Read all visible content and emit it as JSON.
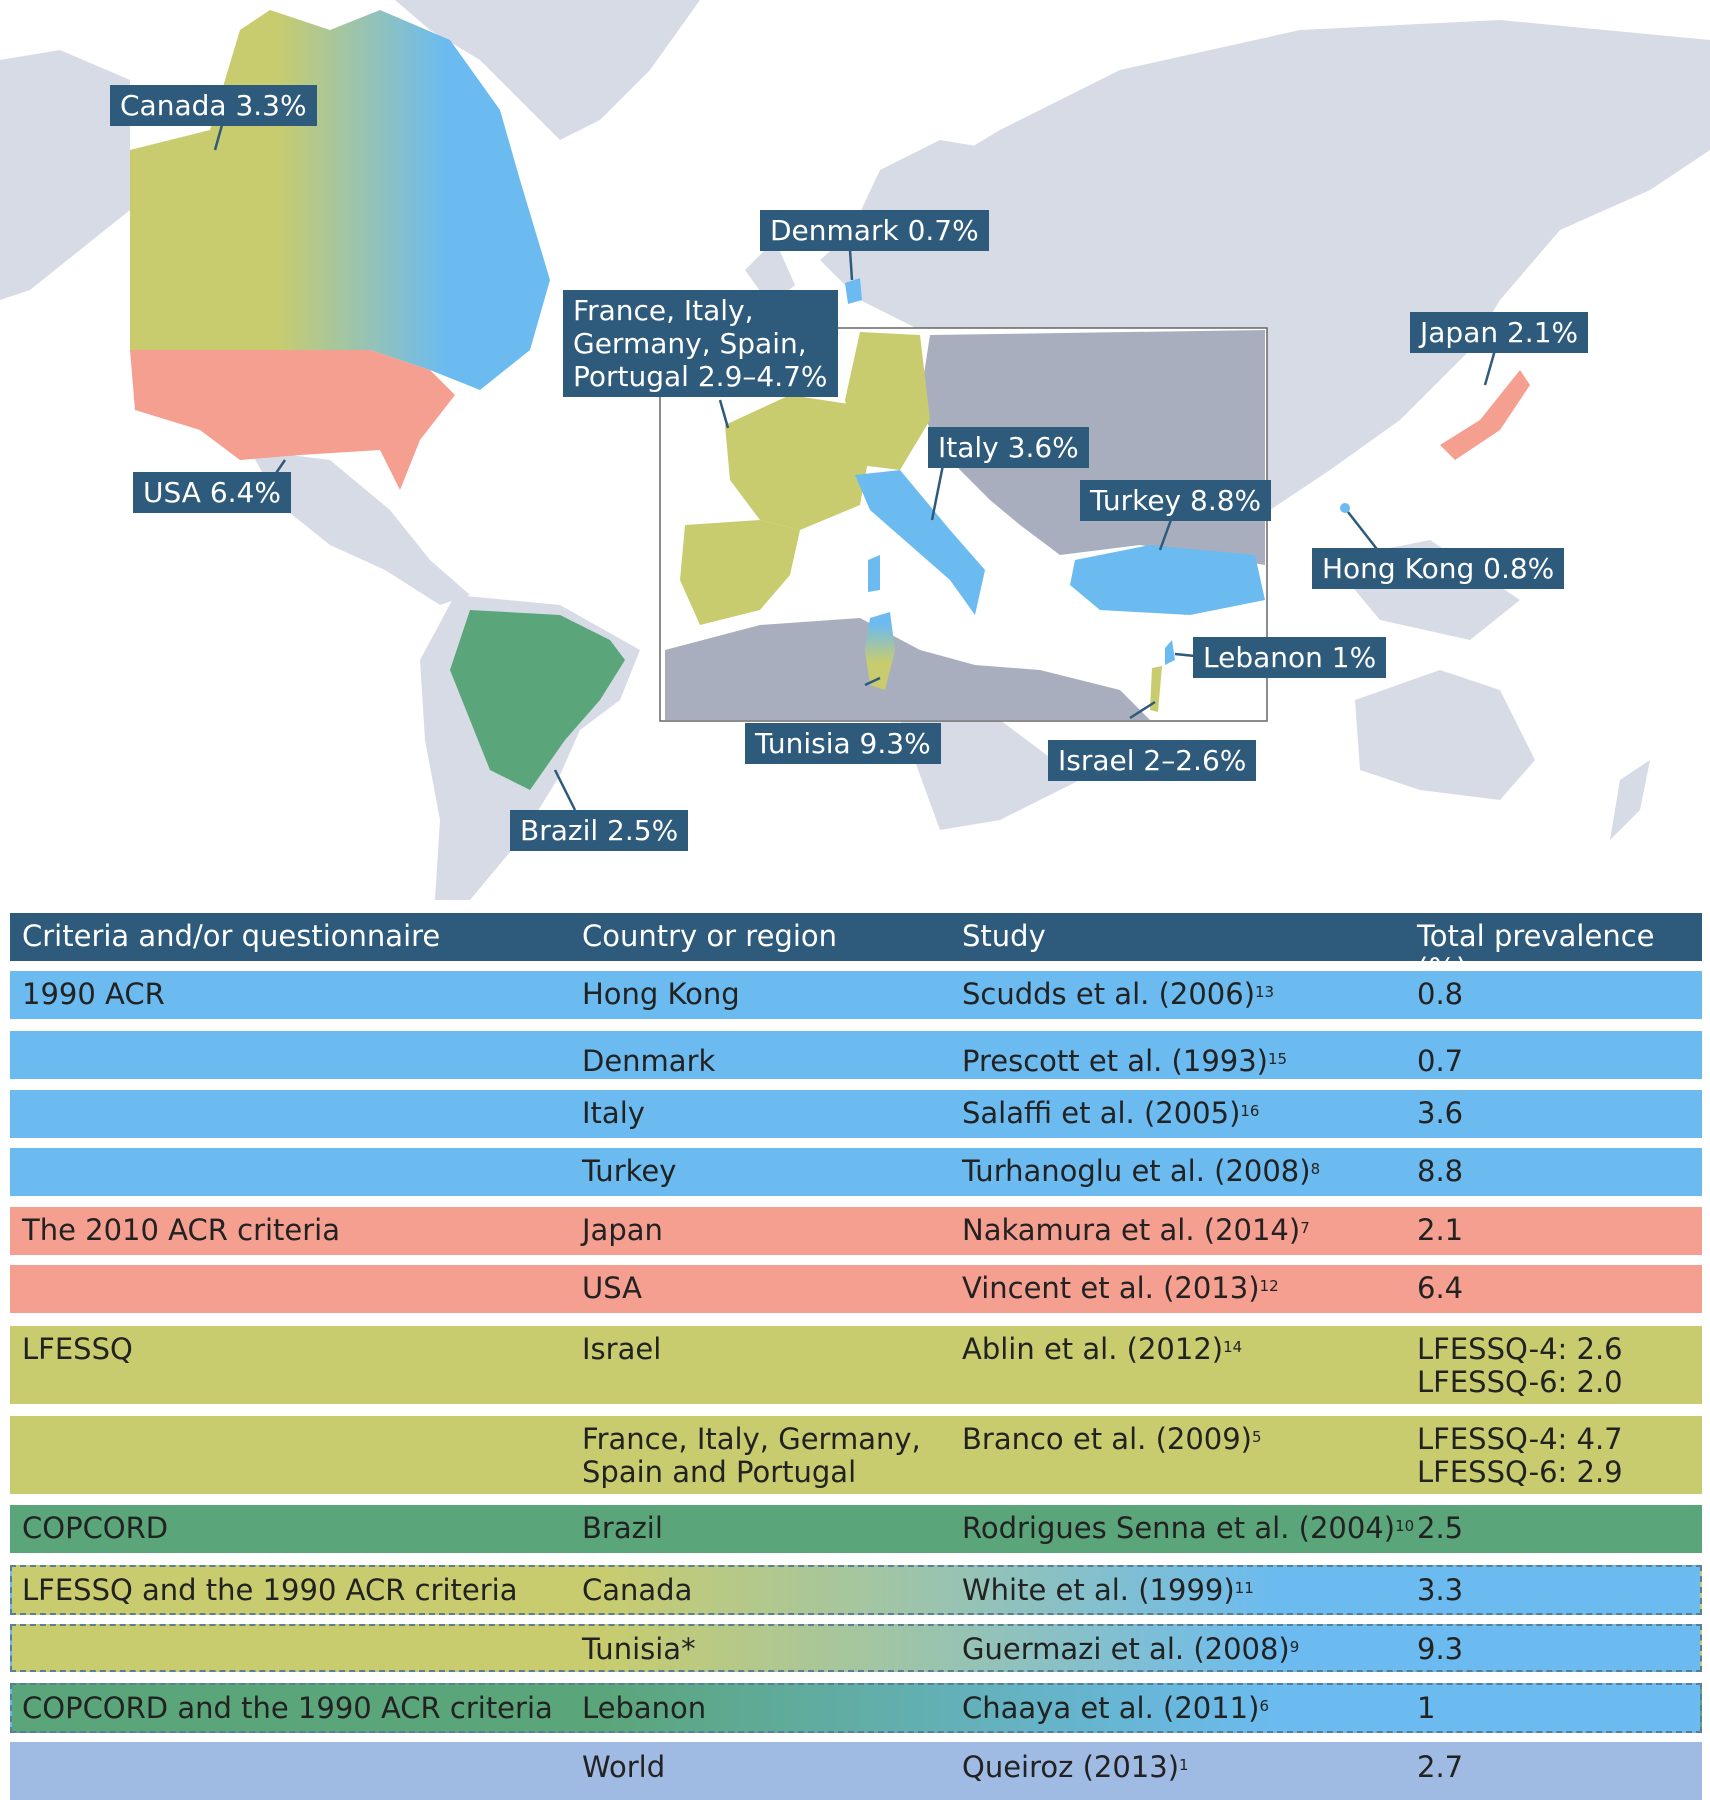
{
  "map": {
    "colors": {
      "ocean": "#ffffff",
      "land": "#d6dbe6",
      "inset_land": "#a9aebf",
      "acr1990": "#6bbbf0",
      "acr2010": "#f59f90",
      "lfessq": "#c8cc6e",
      "copcord": "#5ba57a",
      "callout_bg": "#2e5a7c"
    },
    "callouts": {
      "canada": "Canada 3.3%",
      "denmark": "Denmark 0.7%",
      "europe": "France, Italy,\nGermany, Spain,\nPortugal 2.9–4.7%",
      "japan": "Japan 2.1%",
      "usa": "USA 6.4%",
      "italy": "Italy 3.6%",
      "turkey": "Turkey 8.8%",
      "hong_kong": "Hong Kong 0.8%",
      "lebanon": "Lebanon 1%",
      "tunisia": "Tunisia 9.3%",
      "israel": "Israel 2–2.6%",
      "brazil": "Brazil 2.5%"
    }
  },
  "table": {
    "header": {
      "criteria": "Criteria and/or questionnaire",
      "country": "Country or region",
      "study": "Study",
      "prevalence": "Total prevalence (%)",
      "color": "#2e5a7c"
    },
    "rows": [
      {
        "criteria": "1990 ACR",
        "country": "Hong Kong",
        "study": "Scudds et al. (2006)",
        "ref": "13",
        "prevalence": "0.8",
        "color": "#6bbbf0"
      },
      {
        "criteria": "",
        "country": "Denmark",
        "study": "Prescott et al. (1993)",
        "ref": "15",
        "prevalence": "0.7",
        "color": "#6bbbf0"
      },
      {
        "criteria": "",
        "country": "Italy",
        "study": "Salaffi et al. (2005)",
        "ref": "16",
        "prevalence": "3.6",
        "color": "#6bbbf0"
      },
      {
        "criteria": "",
        "country": "Turkey",
        "study": "Turhanoglu et al. (2008)",
        "ref": "8",
        "prevalence": "8.8",
        "color": "#6bbbf0"
      },
      {
        "criteria": "The 2010 ACR criteria",
        "country": "Japan",
        "study": "Nakamura et al. (2014)",
        "ref": "7",
        "prevalence": "2.1",
        "color": "#f59f90"
      },
      {
        "criteria": "",
        "country": "USA",
        "study": "Vincent  et al. (2013)",
        "ref": "12",
        "prevalence": "6.4",
        "color": "#f59f90"
      },
      {
        "criteria": "LFESSQ",
        "country": "Israel",
        "study": "Ablin et al. (2012)",
        "ref": "14",
        "prevalence": "LFESSQ-4: 2.6\nLFESSQ-6: 2.0",
        "color": "#c8cc6e"
      },
      {
        "criteria": "",
        "country": "France, Italy, Germany,\nSpain and Portugal",
        "study": "Branco et al. (2009)",
        "ref": "5",
        "prevalence": "LFESSQ-4: 4.7\nLFESSQ-6: 2.9",
        "color": "#c8cc6e"
      },
      {
        "criteria": "COPCORD",
        "country": "Brazil",
        "study": "Rodrigues Senna et al. (2004)",
        "ref": "10",
        "prevalence": "2.5",
        "color": "#5ba57a"
      },
      {
        "criteria": "LFESSQ and the 1990 ACR criteria",
        "country": "Canada",
        "study": "White et al. (1999)",
        "ref": "11",
        "prevalence": "3.3",
        "gradient": [
          "#c8cc6e",
          "#6bbbf0"
        ]
      },
      {
        "criteria": "",
        "country": "Tunisia*",
        "study": "Guermazi et al. (2008)",
        "ref": "9",
        "prevalence": "9.3",
        "gradient": [
          "#c8cc6e",
          "#6bbbf0"
        ]
      },
      {
        "criteria": "COPCORD and the 1990 ACR criteria",
        "country": "Lebanon",
        "study": "Chaaya et al. (2011)",
        "ref": "6",
        "prevalence": "1",
        "gradient": [
          "#5ba57a",
          "#6bbbf0"
        ]
      },
      {
        "criteria": "",
        "country": "World",
        "study": "Queiroz (2013)",
        "ref": "1",
        "prevalence": "2.7",
        "color": "#9fbbe3"
      }
    ]
  }
}
